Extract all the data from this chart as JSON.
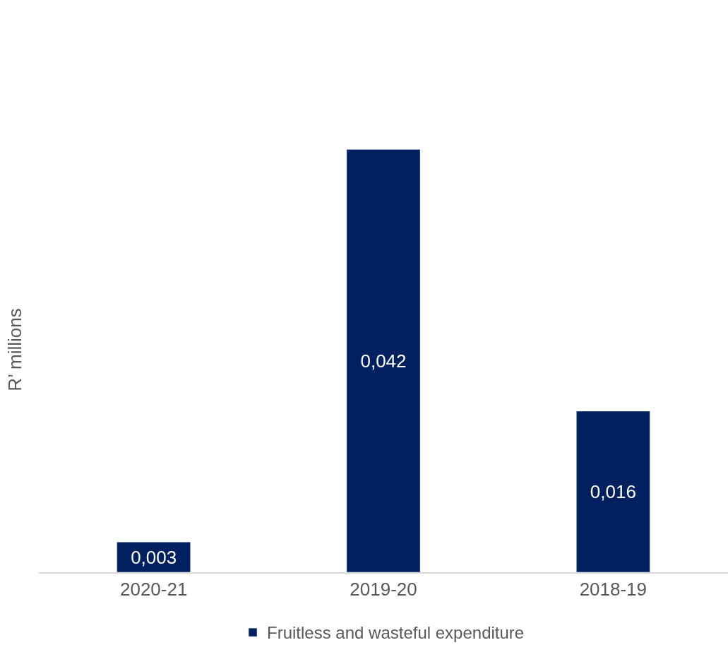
{
  "chart_data": {
    "type": "bar",
    "ylabel": "R’ millions",
    "categories": [
      "2020-21",
      "2019-20",
      "2018-19"
    ],
    "series": [
      {
        "name": "Fruitless and wasteful expenditure",
        "color": "#002060",
        "values": [
          0.003,
          0.042,
          0.016
        ],
        "value_labels": [
          "0,003",
          "0,042",
          "0,016"
        ]
      }
    ],
    "legend": "bottom",
    "tick_labels": "x"
  }
}
